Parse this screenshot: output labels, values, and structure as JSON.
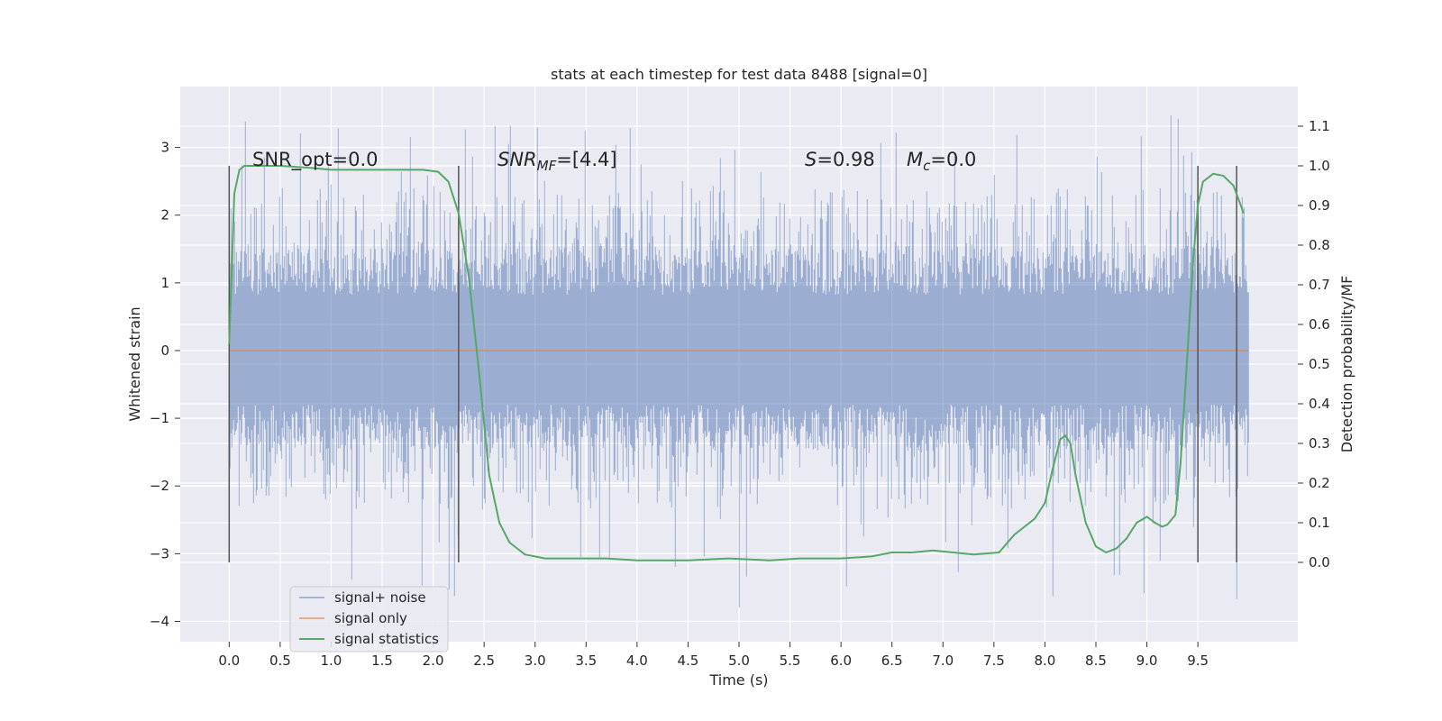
{
  "chart_data": {
    "type": "line",
    "title": "stats at each timestep for test data 8488 [signal=0]",
    "xlabel": "Time (s)",
    "ylabel": "Whitened strain",
    "y2label": "Detection probability/MF",
    "xlim": [
      -0.48,
      10.48
    ],
    "ylim": [
      -4.3,
      3.9
    ],
    "y2lim": [
      -0.2,
      1.2
    ],
    "x_ticks": [
      "0.0",
      "0.5",
      "1.0",
      "1.5",
      "2.0",
      "2.5",
      "3.0",
      "3.5",
      "4.0",
      "4.5",
      "5.0",
      "5.5",
      "6.0",
      "6.5",
      "7.0",
      "7.5",
      "8.0",
      "8.5",
      "9.0",
      "9.5"
    ],
    "y_ticks": [
      "3",
      "2",
      "1",
      "0",
      "−1",
      "−2",
      "−3",
      "−4"
    ],
    "y2_ticks": [
      "1.1",
      "1.0",
      "0.9",
      "0.8",
      "0.7",
      "0.6",
      "0.5",
      "0.4",
      "0.3",
      "0.2",
      "0.1",
      "0.0"
    ],
    "grid": true,
    "legend_placement": "lower-left",
    "colors": {
      "background": "#eaeaf2",
      "grid": "#ffffff",
      "noise": "#4c72b0",
      "signal": "#dd8452",
      "stats": "#55a868",
      "marker": "#555555"
    },
    "annotations": {
      "snr_opt": "SNR_opt=0.0",
      "snr_mf_base": "SNR",
      "snr_mf_sub": "MF",
      "snr_mf_value": "=[4.4]",
      "s_sym": "S",
      "s_value": "=0.98",
      "mc_base": "M",
      "mc_sub": "c",
      "mc_value": "=0.0"
    },
    "vertical_markers": [
      0.0,
      2.25,
      9.5,
      9.88
    ],
    "series": [
      {
        "name": "signal+ noise",
        "kind": "noise",
        "x_range": [
          0.0,
          10.0
        ],
        "envelope": {
          "core_low": -1.45,
          "core_high": 1.5,
          "peak_max": 3.5,
          "trough_min": -3.8
        }
      },
      {
        "name": "signal only",
        "kind": "flat",
        "x": [
          0.0,
          10.0
        ],
        "y": [
          0.0,
          0.0
        ]
      },
      {
        "name": "signal statistics",
        "kind": "line",
        "axis": "right",
        "x": [
          0.0,
          0.05,
          0.1,
          0.15,
          0.3,
          0.5,
          0.8,
          1.0,
          1.3,
          1.6,
          1.9,
          2.05,
          2.15,
          2.25,
          2.35,
          2.45,
          2.55,
          2.65,
          2.75,
          2.9,
          3.1,
          3.4,
          3.7,
          4.0,
          4.5,
          4.9,
          5.3,
          5.6,
          6.0,
          6.3,
          6.5,
          6.7,
          6.9,
          7.1,
          7.3,
          7.55,
          7.7,
          7.9,
          8.0,
          8.08,
          8.15,
          8.2,
          8.25,
          8.3,
          8.4,
          8.5,
          8.6,
          8.7,
          8.8,
          8.9,
          9.0,
          9.08,
          9.15,
          9.2,
          9.28,
          9.33,
          9.38,
          9.45,
          9.5,
          9.55,
          9.65,
          9.75,
          9.85,
          9.95
        ],
        "y": [
          0.55,
          0.93,
          0.99,
          1.0,
          1.0,
          1.0,
          0.995,
          0.99,
          0.99,
          0.99,
          0.99,
          0.985,
          0.96,
          0.88,
          0.72,
          0.48,
          0.22,
          0.1,
          0.05,
          0.02,
          0.01,
          0.01,
          0.01,
          0.005,
          0.005,
          0.01,
          0.005,
          0.01,
          0.01,
          0.015,
          0.025,
          0.025,
          0.03,
          0.025,
          0.02,
          0.025,
          0.07,
          0.11,
          0.15,
          0.24,
          0.31,
          0.32,
          0.3,
          0.22,
          0.1,
          0.04,
          0.025,
          0.035,
          0.06,
          0.1,
          0.115,
          0.1,
          0.09,
          0.095,
          0.12,
          0.25,
          0.45,
          0.75,
          0.9,
          0.96,
          0.98,
          0.975,
          0.95,
          0.88
        ]
      }
    ]
  }
}
